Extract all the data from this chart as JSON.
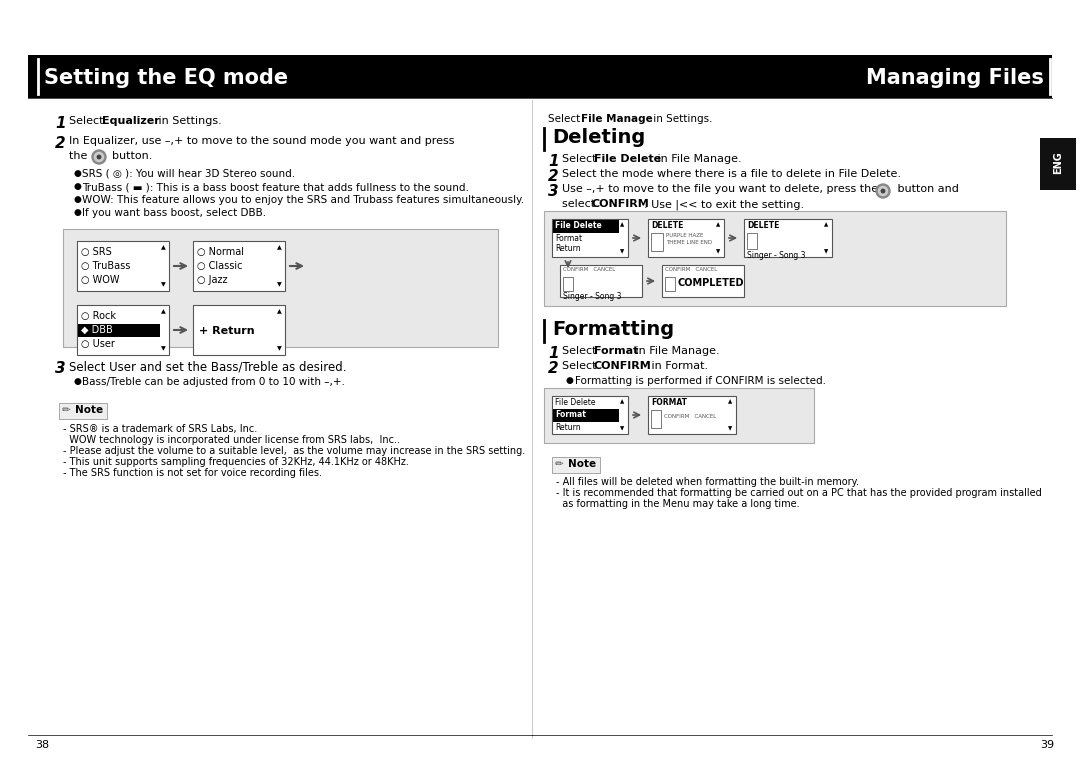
{
  "title_left": "Setting the EQ mode",
  "title_right": "Managing Files",
  "header_bg": "#000000",
  "header_text_color": "#ffffff",
  "page_bg": "#ffffff",
  "page_left": "38",
  "page_right": "39",
  "body_text_color": "#000000",
  "gray_box_bg": "#e8e8e8",
  "left_bullets": [
    "SRS ( ◎ ): You will hear 3D Stereo sound.",
    "TruBass ( ▬ ): This is a bass boost feature that adds fullness to the sound.",
    "WOW: This feature allows you to enjoy the SRS and Trubass features simultaneously.",
    "If you want bass boost, select DBB."
  ],
  "menu_col1": [
    "SRS",
    "TruBass",
    "WOW"
  ],
  "menu_col2": [
    "Normal",
    "Classic",
    "Jazz"
  ],
  "menu_col3": [
    "Rock",
    "DBB",
    "User"
  ],
  "left_note_lines": [
    "- SRS® is a trademark of SRS Labs, Inc.",
    "  WOW technology is incorporated under license from SRS labs,  Inc..",
    "- Please adjust the volume to a suitable level,  as the volume may increase in the SRS setting.",
    "- This unit supports sampling frequencies of 32KHz, 44.1KHz or 48KHz.",
    "- The SRS function is not set for voice recording files."
  ],
  "right_note_lines": [
    "- All files will be deleted when formatting the built-in memory.",
    "- It is recommended that formatting be carried out on a PC that has the provided program installed",
    "  as formatting in the Menu may take a long time."
  ]
}
